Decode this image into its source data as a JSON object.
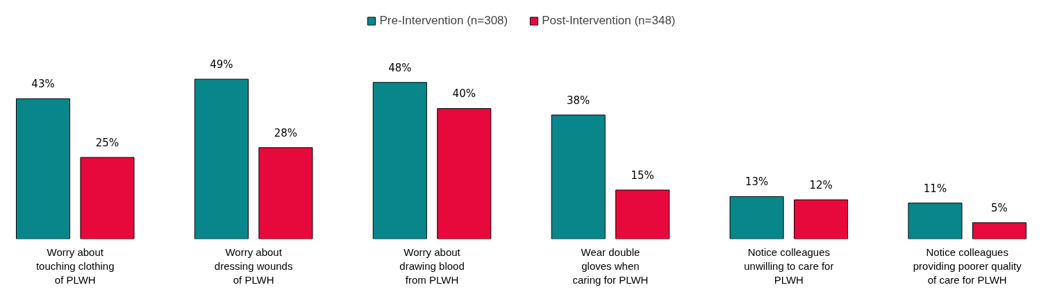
{
  "chart_data": {
    "type": "bar",
    "categories": [
      "Worry about\ntouching clothing\nof PLWH",
      "Worry about\ndressing wounds\nof PLWH",
      "Worry about\ndrawing blood\nfrom PLWH",
      "Wear double\ngloves when\ncaring for PLWH",
      "Notice colleagues\nunwilling to care for\nPLWH",
      "Notice colleagues\nproviding poorer quality\nof care for PLWH"
    ],
    "series": [
      {
        "name": "Pre-Intervention (n=308)",
        "color": "#08868a",
        "values": [
          43,
          49,
          48,
          38,
          13,
          11
        ],
        "value_labels": [
          "43%",
          "49%",
          "48%",
          "38%",
          "13%",
          "11%"
        ]
      },
      {
        "name": "Post-Intervention (n=348)",
        "color": "#e8093c",
        "values": [
          25,
          28,
          40,
          15,
          12,
          5
        ],
        "value_labels": [
          "25%",
          "28%",
          "40%",
          "15%",
          "12%",
          "5%"
        ]
      }
    ],
    "grid": false,
    "legend": "top",
    "tick_labels": "x"
  }
}
